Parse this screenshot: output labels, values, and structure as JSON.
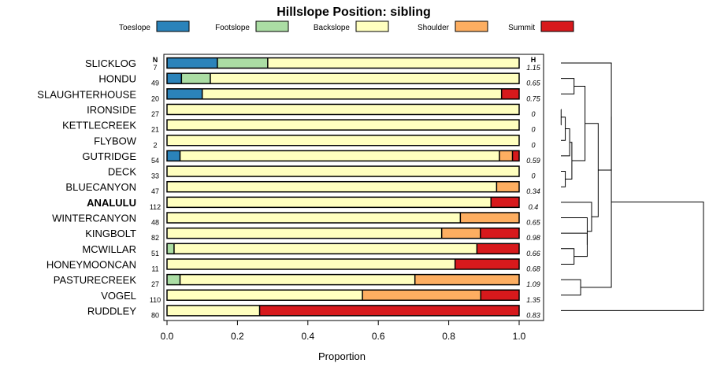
{
  "chart_data": {
    "type": "bar",
    "orientation": "horizontal",
    "stacked": true,
    "title": "Hillslope Position: sibling",
    "xlabel": "Proportion",
    "ylabel": "",
    "xlim": [
      0,
      1
    ],
    "xticks": [
      "0.0",
      "0.2",
      "0.4",
      "0.6",
      "0.8",
      "1.0"
    ],
    "n_header": "N",
    "h_header": "H",
    "highlight": "ANALULU",
    "legend_position": "top",
    "series": [
      {
        "name": "Toeslope",
        "color": "#2b83ba"
      },
      {
        "name": "Footslope",
        "color": "#abdda4"
      },
      {
        "name": "Backslope",
        "color": "#ffffbf"
      },
      {
        "name": "Shoulder",
        "color": "#fdae61"
      },
      {
        "name": "Summit",
        "color": "#d7191c"
      }
    ],
    "categories": [
      "SLICKLOG",
      "HONDU",
      "SLAUGHTERHOUSE",
      "IRONSIDE",
      "KETTLECREEK",
      "FLYBOW",
      "GUTRIDGE",
      "DECK",
      "BLUECANYON",
      "ANALULU",
      "WINTERCANYON",
      "KINGBOLT",
      "MCWILLAR",
      "HONEYMOONCAN",
      "PASTURECREEK",
      "VOGEL",
      "RUDDLEY"
    ],
    "n": [
      "7",
      "49",
      "20",
      "27",
      "21",
      "2",
      "54",
      "33",
      "47",
      "112",
      "48",
      "82",
      "51",
      "11",
      "27",
      "110",
      "80"
    ],
    "h": [
      "1.15",
      "0.65",
      "0.75",
      "0",
      "0",
      "0",
      "0.59",
      "0",
      "0.34",
      "0.4",
      "0.65",
      "0.98",
      "0.66",
      "0.68",
      "1.09",
      "1.35",
      "0.83"
    ],
    "proportions": [
      [
        0.143,
        0.143,
        0.714,
        0,
        0
      ],
      [
        0.041,
        0.082,
        0.877,
        0,
        0
      ],
      [
        0.1,
        0,
        0.85,
        0,
        0.05
      ],
      [
        0,
        0,
        1,
        0,
        0
      ],
      [
        0,
        0,
        1,
        0,
        0
      ],
      [
        0,
        0,
        1,
        0,
        0
      ],
      [
        0.037,
        0,
        0.907,
        0.037,
        0.019
      ],
      [
        0,
        0,
        1,
        0,
        0
      ],
      [
        0,
        0,
        0.936,
        0.064,
        0
      ],
      [
        0,
        0,
        0.92,
        0,
        0.08
      ],
      [
        0,
        0,
        0.833,
        0.167,
        0
      ],
      [
        0,
        0,
        0.78,
        0.11,
        0.11
      ],
      [
        0,
        0.02,
        0.86,
        0,
        0.12
      ],
      [
        0,
        0,
        0.818,
        0,
        0.182
      ],
      [
        0,
        0.037,
        0.667,
        0.296,
        0
      ],
      [
        0,
        0,
        0.555,
        0.336,
        0.109
      ],
      [
        0,
        0,
        0.263,
        0,
        0.737
      ]
    ],
    "dendrogram": {
      "leaves": [
        "SLICKLOG",
        "HONDU",
        "SLAUGHTERHOUSE",
        "IRONSIDE",
        "KETTLECREEK",
        "FLYBOW",
        "GUTRIDGE",
        "DECK",
        "BLUECANYON",
        "ANALULU",
        "WINTERCANYON",
        "KINGBOLT",
        "MCWILLAR",
        "HONEYMOONCAN",
        "PASTURECREEK",
        "VOGEL",
        "RUDDLEY"
      ],
      "merges": [
        {
          "a": "IRONSIDE",
          "b": "KETTLECREEK",
          "height": 0.001
        },
        {
          "a": "DECK",
          "b": "BLUECANYON",
          "height": 0.02
        },
        {
          "a": "n0",
          "b": "FLYBOW",
          "height": 0.02
        },
        {
          "a": "n2",
          "b": "GUTRIDGE",
          "height": 0.04
        },
        {
          "a": "n3",
          "b": "n1",
          "height": 0.05
        },
        {
          "a": "HONDU",
          "b": "SLAUGHTERHOUSE",
          "height": 0.06
        },
        {
          "a": "n5",
          "b": "n4",
          "height": 0.11
        },
        {
          "a": "MCWILLAR",
          "b": "HONEYMOONCAN",
          "height": 0.06
        },
        {
          "a": "KINGBOLT",
          "b": "n7",
          "height": 0.12
        },
        {
          "a": "WINTERCANYON",
          "b": "n8",
          "height": 0.12
        },
        {
          "a": "ANALULU",
          "b": "n9",
          "height": 0.14
        },
        {
          "a": "n6",
          "b": "n10",
          "height": 0.17
        },
        {
          "a": "SLICKLOG",
          "b": "n11",
          "height": 0.23
        },
        {
          "a": "PASTURECREEK",
          "b": "VOGEL",
          "height": 0.09
        },
        {
          "a": "n12",
          "b": "n13",
          "height": 0.23
        },
        {
          "a": "n14",
          "b": "RUDDLEY",
          "height": 0.65
        }
      ]
    }
  }
}
